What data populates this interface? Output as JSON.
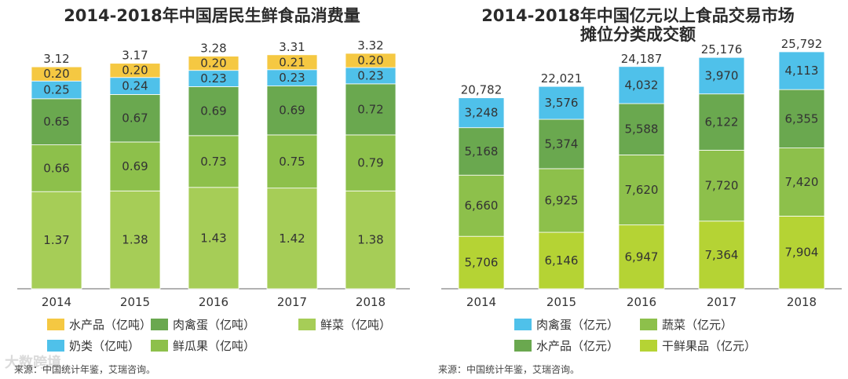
{
  "charts": [
    {
      "title": "2014-2018年中国居民生鲜食品消费量",
      "chart_data": {
        "type": "bar",
        "stacked": true,
        "categories": [
          "2014",
          "2015",
          "2016",
          "2017",
          "2018"
        ],
        "totals": [
          "3.12",
          "3.17",
          "3.28",
          "3.31",
          "3.32"
        ],
        "series": [
          {
            "name": "鲜菜（亿吨）",
            "color": "#a6cd57",
            "values": [
              1.37,
              1.38,
              1.43,
              1.42,
              1.38
            ],
            "labels": [
              "1.37",
              "1.38",
              "1.43",
              "1.42",
              "1.38"
            ]
          },
          {
            "name": "鲜瓜果（亿吨）",
            "color": "#8dc04b",
            "values": [
              0.66,
              0.69,
              0.73,
              0.75,
              0.79
            ],
            "labels": [
              "0.66",
              "0.69",
              "0.73",
              "0.75",
              "0.79"
            ]
          },
          {
            "name": "肉禽蛋（亿吨）",
            "color": "#6aa84f",
            "values": [
              0.65,
              0.67,
              0.69,
              0.69,
              0.72
            ],
            "labels": [
              "0.65",
              "0.67",
              "0.69",
              "0.69",
              "0.72"
            ]
          },
          {
            "name": "奶类（亿吨）",
            "color": "#4fc1ea",
            "values": [
              0.25,
              0.24,
              0.23,
              0.23,
              0.23
            ],
            "labels": [
              "0.25",
              "0.24",
              "0.23",
              "0.23",
              "0.23"
            ]
          },
          {
            "name": "水产品（亿吨）",
            "color": "#f5c842",
            "values": [
              0.2,
              0.2,
              0.2,
              0.21,
              0.2
            ],
            "labels": [
              "0.20",
              "0.20",
              "0.20",
              "0.21",
              "0.20"
            ]
          }
        ],
        "legend_order": [
          4,
          2,
          0,
          3,
          1
        ],
        "ylim": [
          0,
          3.32
        ]
      },
      "source": "来源：中国统计年鉴，艾瑞咨询。"
    },
    {
      "title_line1": "2014-2018年中国亿元以上食品交易市场",
      "title_line2": "摊位分类成交额",
      "chart_data": {
        "type": "bar",
        "stacked": true,
        "categories": [
          "2014",
          "2015",
          "2016",
          "2017",
          "2018"
        ],
        "totals": [
          "20,782",
          "22,021",
          "24,187",
          "25,176",
          "25,792"
        ],
        "series": [
          {
            "name": "干鲜果品（亿元）",
            "color": "#b5d334",
            "values": [
              5706,
              6146,
              6947,
              7364,
              7904
            ],
            "labels": [
              "5,706",
              "6,146",
              "6,947",
              "7,364",
              "7,904"
            ]
          },
          {
            "name": "蔬菜（亿元）",
            "color": "#8dc04b",
            "values": [
              6660,
              6925,
              7620,
              7720,
              7420
            ],
            "labels": [
              "6,660",
              "6,925",
              "7,620",
              "7,720",
              "7,420"
            ]
          },
          {
            "name": "水产品（亿元）",
            "color": "#6aa84f",
            "values": [
              5168,
              5374,
              5588,
              6122,
              6355
            ],
            "labels": [
              "5,168",
              "5,374",
              "5,588",
              "6,122",
              "6,355"
            ]
          },
          {
            "name": "肉禽蛋（亿元）",
            "color": "#4fc1ea",
            "values": [
              3248,
              3576,
              4032,
              3970,
              4113
            ],
            "labels": [
              "3,248",
              "3,576",
              "4,032",
              "3,970",
              "4,113"
            ]
          }
        ],
        "legend_order": [
          3,
          1,
          2,
          0
        ],
        "ylim": [
          0,
          25792
        ]
      },
      "source": "来源：中国统计年鉴，艾瑞咨询。"
    }
  ],
  "watermark": "大数跨境"
}
